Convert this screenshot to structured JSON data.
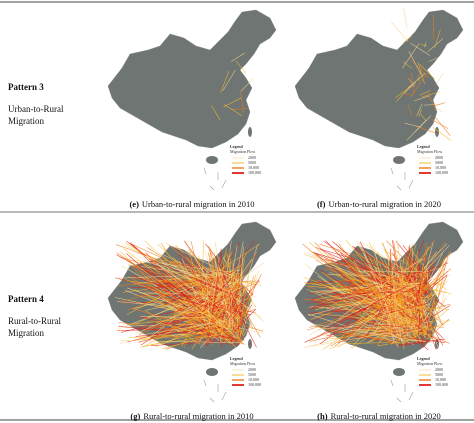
{
  "rows": [
    {
      "pattern": "Pattern 3",
      "description": [
        "Urban-to-Rural",
        "Migration"
      ],
      "panels": [
        {
          "label": "(e)",
          "caption": "Urban-to-rural migration in 2010"
        },
        {
          "label": "(f)",
          "caption": "Urban-to-rural migration in 2020"
        }
      ]
    },
    {
      "pattern": "Pattern 4",
      "description": [
        "Rural-to-Rural",
        "Migration"
      ],
      "panels": [
        {
          "label": "(g)",
          "caption": "Rural-to-rural migration in 2010"
        },
        {
          "label": "(h)",
          "caption": "Rural-to-rural migration in 2020"
        }
      ]
    }
  ],
  "legend": {
    "title": "Legend",
    "subtitle": "Migration Flow",
    "items": [
      "2000",
      "5000",
      "10,000",
      "100,000"
    ]
  }
}
